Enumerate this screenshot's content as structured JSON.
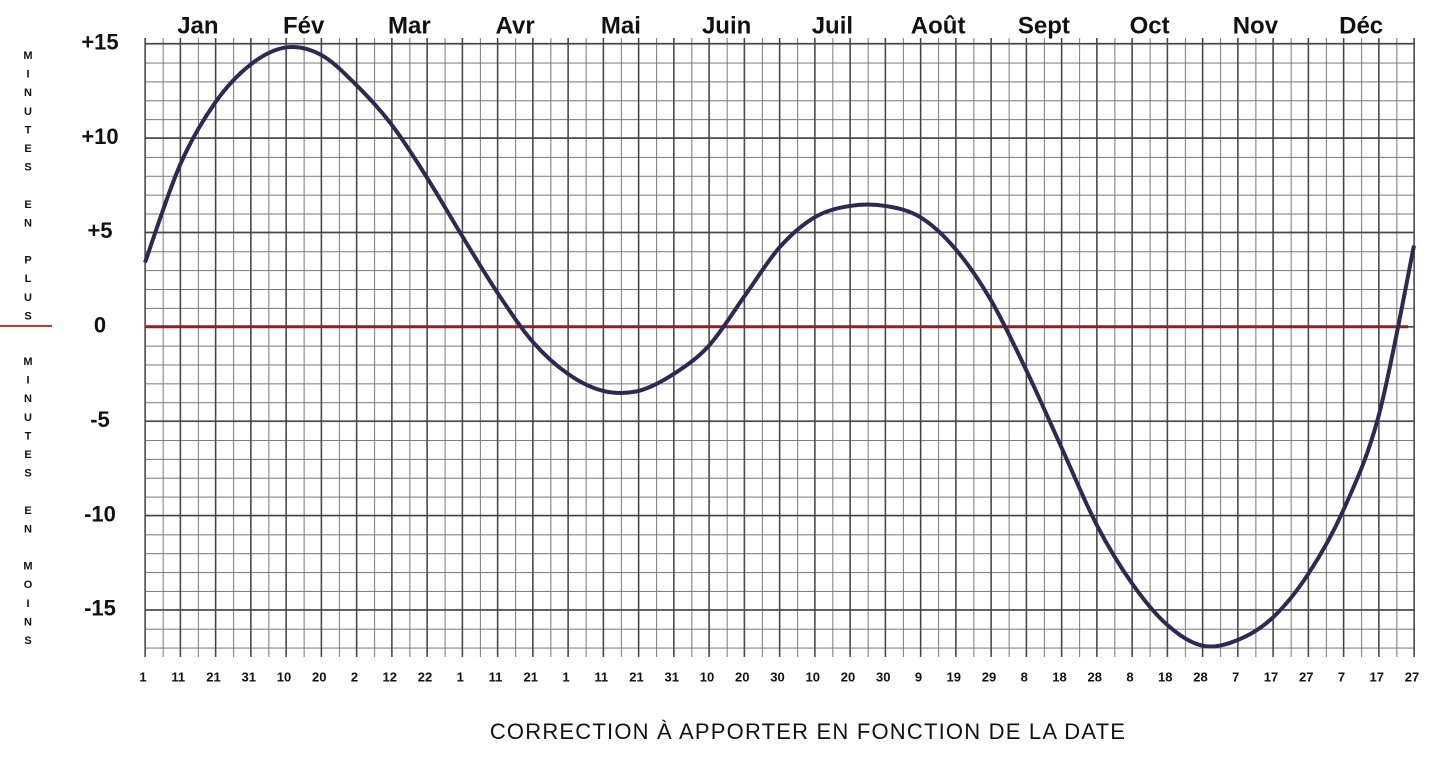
{
  "chart_data": {
    "type": "line",
    "xlabel": "CORRECTION À APPORTER EN FONCTION DE LA DATE",
    "ylabel_top": "MINUTES EN PLUS",
    "ylabel_bottom": "MINUTES EN MOINS",
    "months": [
      "Jan",
      "Fév",
      "Mar",
      "Avr",
      "Mai",
      "Juin",
      "Juil",
      "Août",
      "Sept",
      "Oct",
      "Nov",
      "Déc"
    ],
    "categories": [
      "1",
      "11",
      "21",
      "31",
      "10",
      "20",
      "2",
      "12",
      "22",
      "1",
      "11",
      "21",
      "1",
      "11",
      "21",
      "31",
      "10",
      "20",
      "30",
      "10",
      "20",
      "30",
      "9",
      "19",
      "29",
      "8",
      "18",
      "28",
      "8",
      "18",
      "28",
      "7",
      "17",
      "27",
      "7",
      "17",
      "27"
    ],
    "values": [
      3.4,
      8.6,
      11.9,
      13.9,
      14.8,
      14.4,
      12.8,
      10.7,
      7.9,
      4.8,
      1.8,
      -0.8,
      -2.5,
      -3.4,
      -3.4,
      -2.5,
      -1.0,
      1.6,
      4.2,
      5.8,
      6.4,
      6.4,
      5.8,
      4.1,
      1.4,
      -2.3,
      -6.4,
      -10.5,
      -13.6,
      -15.8,
      -16.9,
      -16.6,
      -15.4,
      -13.1,
      -9.7,
      -4.7,
      4.3
    ],
    "color": "#2b2a55",
    "zero_line_color": "#9b1c1c",
    "ylim": [
      -17.5,
      15.3
    ],
    "yticks": [
      {
        "value": 15,
        "label": "+15"
      },
      {
        "value": 10,
        "label": "+10"
      },
      {
        "value": 5,
        "label": "+5"
      },
      0,
      -5,
      -10,
      -15
    ],
    "grid": true
  }
}
